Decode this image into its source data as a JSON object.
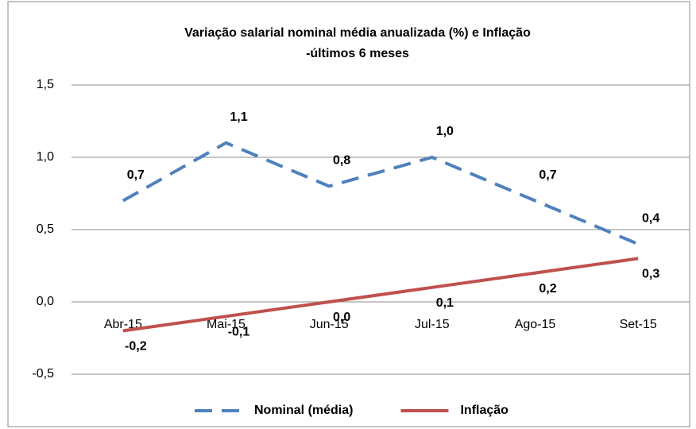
{
  "chart_data": {
    "type": "line",
    "title": [
      "Variação salarial nominal média anualizada (%) e Inflação",
      "-últimos 6 meses"
    ],
    "categories": [
      "Abr-15",
      "Mai-15",
      "Jun-15",
      "Jul-15",
      "Ago-15",
      "Set-15"
    ],
    "series": [
      {
        "name": "Nominal (média)",
        "color": "#4f81bd",
        "dashed": true,
        "values": [
          0.7,
          1.1,
          0.8,
          1.0,
          0.7,
          0.4
        ],
        "value_labels": [
          "0,7",
          "1,1",
          "0,8",
          "1,0",
          "0,7",
          "0,4"
        ]
      },
      {
        "name": "Inflação",
        "color": "#c0504d",
        "dashed": false,
        "values": [
          -0.2,
          -0.1,
          0.0,
          0.1,
          0.2,
          0.3
        ],
        "value_labels": [
          "-0,2",
          "-0,1",
          "0,0",
          "0,1",
          "0,2",
          "0,3"
        ]
      }
    ],
    "ylim": [
      -0.5,
      1.5
    ],
    "yticks": [
      {
        "value": -0.5,
        "label": "-0,5"
      },
      {
        "value": 0,
        "label": "0,0"
      },
      {
        "value": 0.5,
        "label": "0,5"
      },
      {
        "value": 1,
        "label": "1,0"
      },
      {
        "value": 1.5,
        "label": "1,5"
      }
    ],
    "grid": true,
    "legend": "bottom"
  }
}
